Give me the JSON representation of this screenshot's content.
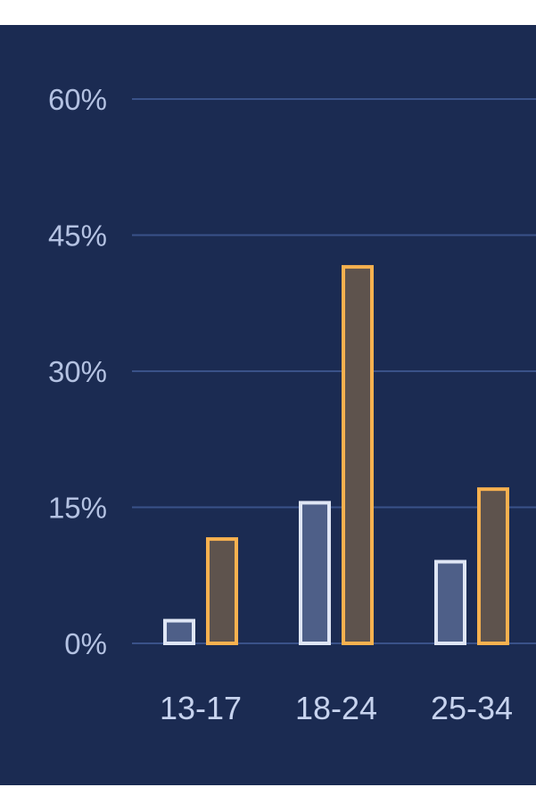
{
  "chart_data": {
    "type": "bar",
    "title": "",
    "xlabel": "",
    "ylabel": "",
    "ylim": [
      0,
      60
    ],
    "yticks": [
      0,
      15,
      30,
      45,
      60
    ],
    "ytick_labels": [
      "0%",
      "15%",
      "30%",
      "45%",
      "60%"
    ],
    "categories": [
      "13-17",
      "18-24",
      "25-34"
    ],
    "series": [
      {
        "values": [
          2.5,
          15.5,
          9
        ],
        "color": "#dfe6f5",
        "fill": "#4e5f88"
      },
      {
        "values": [
          11.5,
          41.5,
          17
        ],
        "color": "#f7b14f",
        "fill": "#5e534d"
      }
    ],
    "grid": true,
    "background": "#1b2b52",
    "gridline_color": "#3a5289"
  }
}
